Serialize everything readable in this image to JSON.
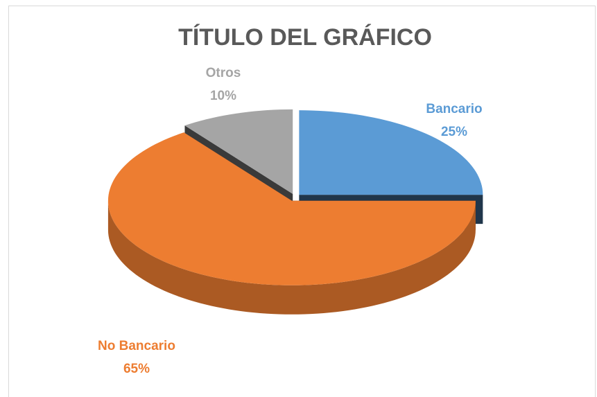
{
  "chart_data": {
    "type": "pie3d",
    "title": "TÍTULO DEL GRÁFICO",
    "categories": [
      "Bancario",
      "No Bancario",
      "Otros"
    ],
    "values": [
      25,
      65,
      10
    ],
    "value_labels": [
      "25%",
      "65%",
      "10%"
    ],
    "colors": [
      "#5b9bd5",
      "#ed7d31",
      "#a5a5a5"
    ]
  }
}
